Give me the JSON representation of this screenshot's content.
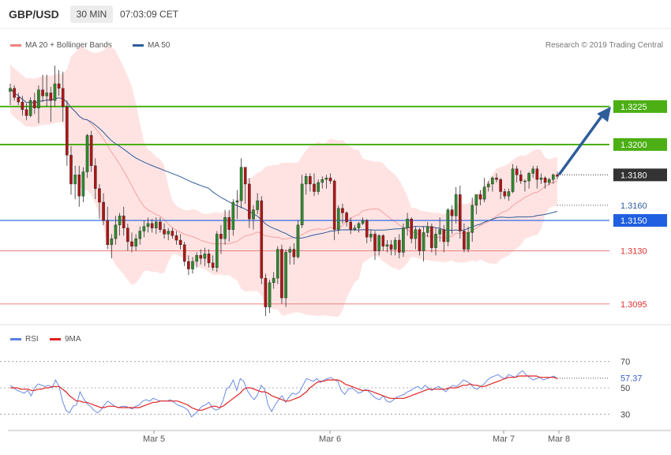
{
  "header": {
    "symbol": "GBP/USD",
    "timeframe": "30 MIN",
    "time": "07:03:09 CET"
  },
  "legend": {
    "bb": {
      "label": "MA 20 + Bollinger Bands",
      "color": "#f08080"
    },
    "ma50": {
      "label": "MA 50",
      "color": "#2e5d9a"
    }
  },
  "copyright": "Research © 2019 Trading Central",
  "rsi_legend": {
    "rsi": {
      "label": "RSI",
      "color": "#5b7fe0"
    },
    "ma9": {
      "label": "9MA",
      "color": "#e02020"
    }
  },
  "chart_data": [
    {
      "type": "candlestick",
      "price_range": [
        1.3085,
        1.3265
      ],
      "x_labels": [
        "Mar 5",
        "Mar 6",
        "Mar 7",
        "Mar 8"
      ],
      "ohlc": [
        [
          1.3235,
          1.324,
          1.3226,
          1.3237
        ],
        [
          1.3237,
          1.3239,
          1.3229,
          1.3231
        ],
        [
          1.3231,
          1.3234,
          1.3226,
          1.3228
        ],
        [
          1.3228,
          1.3232,
          1.3219,
          1.3223
        ],
        [
          1.3223,
          1.3227,
          1.3216,
          1.3219
        ],
        [
          1.3219,
          1.3231,
          1.3218,
          1.3229
        ],
        [
          1.3229,
          1.3234,
          1.322,
          1.3224
        ],
        [
          1.3224,
          1.3239,
          1.3214,
          1.3236
        ],
        [
          1.3236,
          1.3246,
          1.3228,
          1.3232
        ],
        [
          1.3232,
          1.3246,
          1.3225,
          1.3234
        ],
        [
          1.3234,
          1.3238,
          1.3215,
          1.3229
        ],
        [
          1.3229,
          1.3252,
          1.3225,
          1.324
        ],
        [
          1.324,
          1.3249,
          1.3232,
          1.3237
        ],
        [
          1.3237,
          1.3248,
          1.3215,
          1.3225
        ],
        [
          1.3225,
          1.3229,
          1.3186,
          1.3193
        ],
        [
          1.3193,
          1.3199,
          1.3167,
          1.3174
        ],
        [
          1.3174,
          1.3186,
          1.3164,
          1.318
        ],
        [
          1.318,
          1.3186,
          1.3159,
          1.3166
        ],
        [
          1.3166,
          1.3185,
          1.3162,
          1.3182
        ],
        [
          1.3182,
          1.3207,
          1.3178,
          1.3206
        ],
        [
          1.3206,
          1.3209,
          1.3182,
          1.3186
        ],
        [
          1.3186,
          1.3191,
          1.3164,
          1.3171
        ],
        [
          1.3171,
          1.3174,
          1.3151,
          1.3162
        ],
        [
          1.3162,
          1.3168,
          1.3147,
          1.315
        ],
        [
          1.315,
          1.3159,
          1.3131,
          1.3134
        ],
        [
          1.3134,
          1.3141,
          1.3125,
          1.3138
        ],
        [
          1.3138,
          1.3153,
          1.3134,
          1.3147
        ],
        [
          1.3147,
          1.3155,
          1.314,
          1.3153
        ],
        [
          1.3153,
          1.3159,
          1.314,
          1.3145
        ],
        [
          1.3145,
          1.3148,
          1.313,
          1.3136
        ],
        [
          1.3136,
          1.3142,
          1.3129,
          1.3133
        ],
        [
          1.3133,
          1.3141,
          1.313,
          1.3138
        ],
        [
          1.3138,
          1.3146,
          1.3134,
          1.3143
        ],
        [
          1.3143,
          1.315,
          1.3139,
          1.3146
        ],
        [
          1.3146,
          1.3152,
          1.3142,
          1.3148
        ],
        [
          1.3148,
          1.3151,
          1.3142,
          1.3145
        ],
        [
          1.3145,
          1.3152,
          1.3141,
          1.3149
        ],
        [
          1.3149,
          1.3152,
          1.3142,
          1.3144
        ],
        [
          1.3144,
          1.3148,
          1.3138,
          1.3141
        ],
        [
          1.3141,
          1.3145,
          1.3137,
          1.3143
        ],
        [
          1.3143,
          1.3145,
          1.3138,
          1.314
        ],
        [
          1.314,
          1.3143,
          1.3134,
          1.3137
        ],
        [
          1.3137,
          1.3141,
          1.3131,
          1.3134
        ],
        [
          1.3134,
          1.3136,
          1.312,
          1.3123
        ],
        [
          1.3123,
          1.3127,
          1.3114,
          1.3118
        ],
        [
          1.3118,
          1.3126,
          1.3115,
          1.3123
        ],
        [
          1.3123,
          1.3129,
          1.3119,
          1.3127
        ],
        [
          1.3127,
          1.3131,
          1.3121,
          1.3125
        ],
        [
          1.3125,
          1.3132,
          1.312,
          1.3128
        ],
        [
          1.3128,
          1.3131,
          1.3119,
          1.3122
        ],
        [
          1.3122,
          1.3127,
          1.3117,
          1.3119
        ],
        [
          1.3119,
          1.3143,
          1.3116,
          1.3141
        ],
        [
          1.3141,
          1.3147,
          1.3128,
          1.3138
        ],
        [
          1.3138,
          1.3157,
          1.3134,
          1.3152
        ],
        [
          1.3152,
          1.3157,
          1.3136,
          1.3144
        ],
        [
          1.3144,
          1.3164,
          1.314,
          1.3162
        ],
        [
          1.3162,
          1.317,
          1.3151,
          1.3163
        ],
        [
          1.3163,
          1.3191,
          1.3158,
          1.3185
        ],
        [
          1.3185,
          1.3185,
          1.3161,
          1.3174
        ],
        [
          1.3174,
          1.3178,
          1.3145,
          1.3151
        ],
        [
          1.3151,
          1.316,
          1.3144,
          1.3157
        ],
        [
          1.3157,
          1.3168,
          1.3154,
          1.3163
        ],
        [
          1.3163,
          1.3166,
          1.3108,
          1.3112
        ],
        [
          1.3112,
          1.3115,
          1.3087,
          1.3093
        ],
        [
          1.3093,
          1.3111,
          1.3089,
          1.3109
        ],
        [
          1.3109,
          1.3116,
          1.3105,
          1.3112
        ],
        [
          1.3112,
          1.3133,
          1.3108,
          1.3131
        ],
        [
          1.3131,
          1.3134,
          1.3095,
          1.3099
        ],
        [
          1.3099,
          1.3131,
          1.3093,
          1.3129
        ],
        [
          1.3129,
          1.3133,
          1.3121,
          1.3131
        ],
        [
          1.3131,
          1.3135,
          1.3121,
          1.3126
        ],
        [
          1.3126,
          1.315,
          1.3125,
          1.3147
        ],
        [
          1.3147,
          1.318,
          1.3145,
          1.3174
        ],
        [
          1.3174,
          1.3181,
          1.3167,
          1.3179
        ],
        [
          1.3179,
          1.3181,
          1.3169,
          1.3174
        ],
        [
          1.3174,
          1.3181,
          1.3166,
          1.3169
        ],
        [
          1.3169,
          1.3177,
          1.3167,
          1.3175
        ],
        [
          1.3175,
          1.3179,
          1.3171,
          1.3177
        ],
        [
          1.3177,
          1.318,
          1.3171,
          1.3178
        ],
        [
          1.3178,
          1.3181,
          1.3174,
          1.3176
        ],
        [
          1.3176,
          1.3177,
          1.3137,
          1.3144
        ],
        [
          1.3144,
          1.316,
          1.3141,
          1.3158
        ],
        [
          1.3158,
          1.3161,
          1.3148,
          1.3155
        ],
        [
          1.3155,
          1.3156,
          1.3146,
          1.3149
        ],
        [
          1.3149,
          1.3152,
          1.3141,
          1.3144
        ],
        [
          1.3144,
          1.3147,
          1.3143,
          1.3145
        ],
        [
          1.3145,
          1.3149,
          1.3142,
          1.3148
        ],
        [
          1.3148,
          1.3152,
          1.3147,
          1.315
        ],
        [
          1.315,
          1.3151,
          1.3135,
          1.3139
        ],
        [
          1.3139,
          1.3144,
          1.3136,
          1.3141
        ],
        [
          1.3141,
          1.3143,
          1.3124,
          1.313
        ],
        [
          1.313,
          1.3141,
          1.3127,
          1.314
        ],
        [
          1.314,
          1.3141,
          1.313,
          1.3133
        ],
        [
          1.3133,
          1.3137,
          1.3129,
          1.3134
        ],
        [
          1.3134,
          1.3137,
          1.3127,
          1.3131
        ],
        [
          1.3131,
          1.3139,
          1.3127,
          1.3137
        ],
        [
          1.3137,
          1.3141,
          1.3125,
          1.3129
        ],
        [
          1.3129,
          1.3148,
          1.3126,
          1.3145
        ],
        [
          1.3145,
          1.3155,
          1.314,
          1.3151
        ],
        [
          1.3151,
          1.3152,
          1.3135,
          1.3138
        ],
        [
          1.3138,
          1.3146,
          1.3131,
          1.3144
        ],
        [
          1.3144,
          1.3145,
          1.3127,
          1.313
        ],
        [
          1.313,
          1.3146,
          1.3123,
          1.3142
        ],
        [
          1.3142,
          1.3149,
          1.3139,
          1.3146
        ],
        [
          1.3146,
          1.3148,
          1.3129,
          1.3132
        ],
        [
          1.3132,
          1.3145,
          1.3127,
          1.3141
        ],
        [
          1.3141,
          1.3152,
          1.3136,
          1.3144
        ],
        [
          1.3144,
          1.3147,
          1.3129,
          1.3136
        ],
        [
          1.3136,
          1.3158,
          1.3133,
          1.3157
        ],
        [
          1.3157,
          1.316,
          1.3141,
          1.3153
        ],
        [
          1.3153,
          1.3172,
          1.3148,
          1.3167
        ],
        [
          1.3167,
          1.3173,
          1.3138,
          1.3143
        ],
        [
          1.3143,
          1.3148,
          1.3129,
          1.3131
        ],
        [
          1.3131,
          1.3146,
          1.3129,
          1.3142
        ],
        [
          1.3142,
          1.3165,
          1.3136,
          1.316
        ],
        [
          1.316,
          1.3166,
          1.3154,
          1.3167
        ],
        [
          1.3167,
          1.317,
          1.316,
          1.3164
        ],
        [
          1.3164,
          1.3178,
          1.3162,
          1.3172
        ],
        [
          1.3172,
          1.3176,
          1.3169,
          1.3174
        ],
        [
          1.3174,
          1.3179,
          1.3169,
          1.3178
        ],
        [
          1.3178,
          1.3181,
          1.3175,
          1.3177
        ],
        [
          1.3177,
          1.3178,
          1.3164,
          1.3169
        ],
        [
          1.3169,
          1.3171,
          1.3164,
          1.3166
        ],
        [
          1.3166,
          1.3171,
          1.3163,
          1.3169
        ],
        [
          1.3169,
          1.3187,
          1.3168,
          1.3184
        ],
        [
          1.3184,
          1.3186,
          1.3175,
          1.318
        ],
        [
          1.318,
          1.3183,
          1.3174,
          1.3176
        ],
        [
          1.3176,
          1.3177,
          1.3169,
          1.3176
        ],
        [
          1.3176,
          1.3182,
          1.3171,
          1.3181
        ],
        [
          1.3181,
          1.3186,
          1.3178,
          1.3184
        ],
        [
          1.3184,
          1.3186,
          1.3171,
          1.3177
        ],
        [
          1.3177,
          1.3181,
          1.3174,
          1.3178
        ],
        [
          1.3178,
          1.3179,
          1.3171,
          1.3175
        ],
        [
          1.3175,
          1.3178,
          1.3173,
          1.3177
        ],
        [
          1.3177,
          1.3181,
          1.3174,
          1.318
        ],
        [
          1.318,
          1.3182,
          1.3177,
          1.3179
        ]
      ],
      "levels": [
        {
          "value": "1.3225",
          "kind": "resistance",
          "color": "#4caf14"
        },
        {
          "value": "1.3200",
          "kind": "resistance",
          "color": "#4caf14"
        },
        {
          "value": "1.3180",
          "kind": "last",
          "color": "#333333"
        },
        {
          "value": "1.3160",
          "kind": "ma50",
          "color": "#2e5d9a"
        },
        {
          "value": "1.3150",
          "kind": "pivot",
          "color": "#1f5fe0"
        },
        {
          "value": "1.3130",
          "kind": "support",
          "color": "#f08080"
        },
        {
          "value": "1.3095",
          "kind": "support",
          "color": "#f08080"
        }
      ],
      "arrow": {
        "from": 1.318,
        "to": 1.3225,
        "color": "#2e5d9a"
      }
    },
    {
      "type": "line",
      "title": "RSI",
      "ylim": [
        20,
        80
      ],
      "y_ticks": [
        70,
        50,
        30
      ],
      "current": "57.37",
      "series": [
        {
          "name": "RSI",
          "values": [
            52,
            50,
            48,
            47,
            46,
            48,
            44,
            50,
            53,
            52,
            51,
            52,
            50,
            56,
            51,
            40,
            33,
            31,
            36,
            37,
            47,
            42,
            38,
            36,
            33,
            31,
            33,
            37,
            40,
            38,
            36,
            35,
            36,
            36,
            35,
            34,
            36,
            37,
            40,
            41,
            40,
            42,
            41,
            40,
            40,
            40,
            41,
            39,
            37,
            36,
            35,
            33,
            28,
            30,
            33,
            36,
            37,
            39,
            35,
            33,
            34,
            40,
            49,
            51,
            56,
            48,
            57,
            55,
            48,
            44,
            41,
            45,
            52,
            49,
            37,
            32,
            37,
            41,
            44,
            39,
            43,
            46,
            45,
            47,
            52,
            57,
            56,
            55,
            57,
            54,
            56,
            57,
            58,
            56,
            55,
            48,
            45,
            49,
            50,
            48,
            46,
            47,
            49,
            47,
            44,
            42,
            41,
            44,
            40,
            39,
            41,
            43,
            44,
            45,
            47,
            48,
            50,
            51,
            49,
            52,
            50,
            48,
            50,
            51,
            49,
            47,
            50,
            52,
            51,
            53,
            56,
            55,
            53,
            50,
            49,
            51,
            53,
            56,
            58,
            59,
            60,
            58,
            57,
            60,
            59,
            58,
            61,
            63,
            60,
            58,
            56,
            57,
            58,
            56,
            57,
            58,
            59,
            57
          ]
        },
        {
          "name": "9MA",
          "values": [
            50,
            50,
            50,
            49,
            49,
            49,
            48,
            48,
            49,
            49,
            50,
            50,
            51,
            51,
            51,
            49,
            47,
            44,
            42,
            40,
            40,
            39,
            39,
            38,
            37,
            36,
            35,
            35,
            36,
            36,
            36,
            35,
            35,
            35,
            35,
            35,
            35,
            35,
            36,
            37,
            38,
            39,
            39,
            40,
            40,
            40,
            40,
            40,
            40,
            39,
            38,
            37,
            35,
            34,
            33,
            33,
            34,
            35,
            36,
            36,
            35,
            36,
            38,
            40,
            42,
            44,
            46,
            49,
            50,
            50,
            49,
            48,
            47,
            47,
            46,
            44,
            43,
            42,
            41,
            40,
            40,
            41,
            42,
            43,
            45,
            47,
            50,
            52,
            54,
            55,
            55,
            56,
            56,
            56,
            56,
            55,
            53,
            52,
            51,
            50,
            49,
            48,
            48,
            48,
            47,
            46,
            45,
            44,
            43,
            42,
            42,
            42,
            42,
            42,
            43,
            44,
            45,
            46,
            47,
            48,
            49,
            49,
            49,
            49,
            49,
            49,
            50,
            50,
            50,
            51,
            52,
            52,
            53,
            52,
            52,
            51,
            51,
            52,
            53,
            54,
            55,
            56,
            57,
            58,
            58,
            58,
            59,
            59,
            59,
            59,
            59,
            59,
            58,
            58,
            58,
            58,
            58,
            57
          ]
        }
      ]
    }
  ]
}
